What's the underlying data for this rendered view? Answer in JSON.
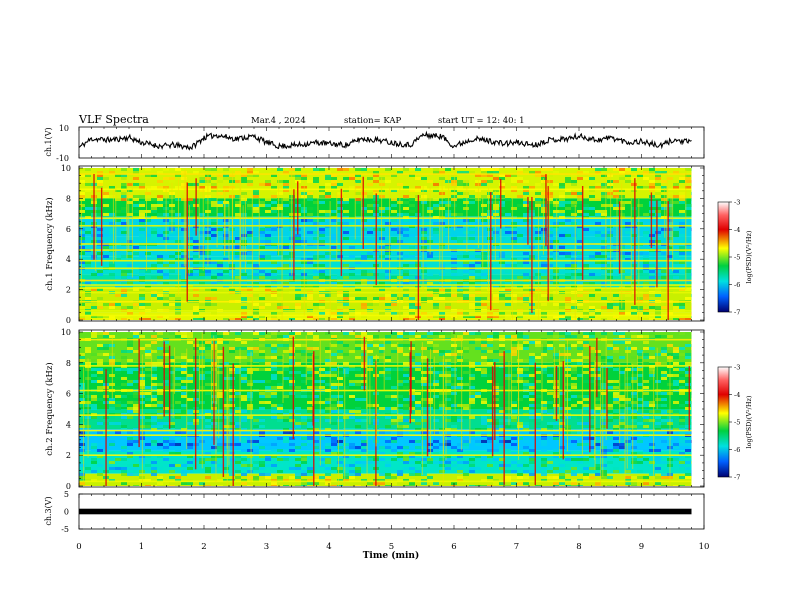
{
  "header": {
    "title": "VLF Spectra",
    "date": "Mar.4 , 2024",
    "station": "station= KAP",
    "start": "start UT =  12: 40: 1"
  },
  "chart_data": [
    {
      "type": "line",
      "panel": "ch1-voltage",
      "ylabel": "ch.1(V)",
      "xlim": [
        0,
        10
      ],
      "ylim": [
        -10,
        10
      ],
      "yticks": [
        "10",
        "-10"
      ],
      "x": [
        0.0,
        0.2,
        0.5,
        0.8,
        1.0,
        1.3,
        1.5,
        1.8,
        2.0,
        2.2,
        2.5,
        2.8,
        3.0,
        3.2,
        3.5,
        3.8,
        4.0,
        4.3,
        4.5,
        4.8,
        5.0,
        5.3,
        5.5,
        5.8,
        6.0,
        6.3,
        6.5,
        6.8,
        7.0,
        7.3,
        7.5,
        7.8,
        8.0,
        8.3,
        8.5,
        8.8,
        9.0,
        9.3,
        9.5,
        9.8
      ],
      "y": [
        -4,
        3,
        2,
        4,
        0,
        -3,
        -2,
        -4,
        4,
        6,
        3,
        5,
        0,
        -3,
        -2,
        0,
        -1,
        -2,
        3,
        2,
        0,
        -2,
        6,
        5,
        -3,
        3,
        2,
        -1,
        0,
        -2,
        2,
        3,
        5,
        2,
        4,
        0,
        1,
        -3,
        2,
        0
      ]
    },
    {
      "type": "heatmap",
      "panel": "ch1-spectrogram",
      "ylabel": "ch.1 Frequency (kHz)",
      "xlim": [
        0,
        10
      ],
      "ylim": [
        0,
        10
      ],
      "yticks": [
        "0",
        "2",
        "4",
        "6",
        "8",
        "10"
      ],
      "colorbar": {
        "label": "log(PSD)(V²/Hz)",
        "range": [
          -7,
          -3
        ],
        "ticks": [
          "-3",
          "-4",
          "-5",
          "-6",
          "-7"
        ]
      },
      "bands_khz": [
        {
          "freq_range": [
            8,
            10
          ],
          "level": -4.5
        },
        {
          "freq_range": [
            6.8,
            8
          ],
          "level": -5.0
        },
        {
          "freq_range": [
            5.5,
            6.8
          ],
          "level": -5.8
        },
        {
          "freq_range": [
            4.2,
            5.5
          ],
          "level": -5.7
        },
        {
          "freq_range": [
            3,
            4.2
          ],
          "level": -5.6
        },
        {
          "freq_range": [
            2.2,
            3
          ],
          "level": -5.4
        },
        {
          "freq_range": [
            0.5,
            2.2
          ],
          "level": -4.6
        },
        {
          "freq_range": [
            0,
            0.5
          ],
          "level": -4.4
        }
      ],
      "lines_khz": [
        0.3,
        0.6,
        1.2,
        1.8,
        2.1,
        2.3,
        2.6,
        3.4,
        3.9,
        4.6,
        5.0,
        6.2,
        6.7,
        8.6,
        9.6
      ]
    },
    {
      "type": "heatmap",
      "panel": "ch2-spectrogram",
      "ylabel": "ch.2 Frequency (kHz)",
      "xlim": [
        0,
        10
      ],
      "ylim": [
        0,
        10
      ],
      "yticks": [
        "0",
        "2",
        "4",
        "6",
        "8",
        "10"
      ],
      "colorbar": {
        "label": "log(PSD)(V²/Hz)",
        "range": [
          -7,
          -3
        ],
        "ticks": [
          "-3",
          "-4",
          "-5",
          "-6",
          "-7"
        ]
      },
      "bands_khz": [
        {
          "freq_range": [
            8,
            10
          ],
          "level": -4.8
        },
        {
          "freq_range": [
            5,
            8
          ],
          "level": -5.0
        },
        {
          "freq_range": [
            3.7,
            5
          ],
          "level": -5.3
        },
        {
          "freq_range": [
            2.3,
            3.7
          ],
          "level": -6.0
        },
        {
          "freq_range": [
            0.8,
            2.3
          ],
          "level": -5.5
        },
        {
          "freq_range": [
            0,
            0.8
          ],
          "level": -4.6
        }
      ],
      "lines_khz": [
        0.3,
        2.0,
        3.3,
        3.6,
        4.6,
        6.2,
        7.8,
        9.5
      ]
    },
    {
      "type": "line",
      "panel": "ch3-voltage",
      "ylabel": "ch.3(V)",
      "xlabel": "Time (min)",
      "xlim": [
        0,
        10
      ],
      "ylim": [
        -5,
        5
      ],
      "yticks": [
        "5",
        "0",
        "-5"
      ],
      "xticks": [
        "0",
        "1",
        "2",
        "3",
        "4",
        "5",
        "6",
        "7",
        "8",
        "9",
        "10"
      ],
      "x": [
        0,
        9.8
      ],
      "y": [
        0,
        0
      ]
    }
  ]
}
